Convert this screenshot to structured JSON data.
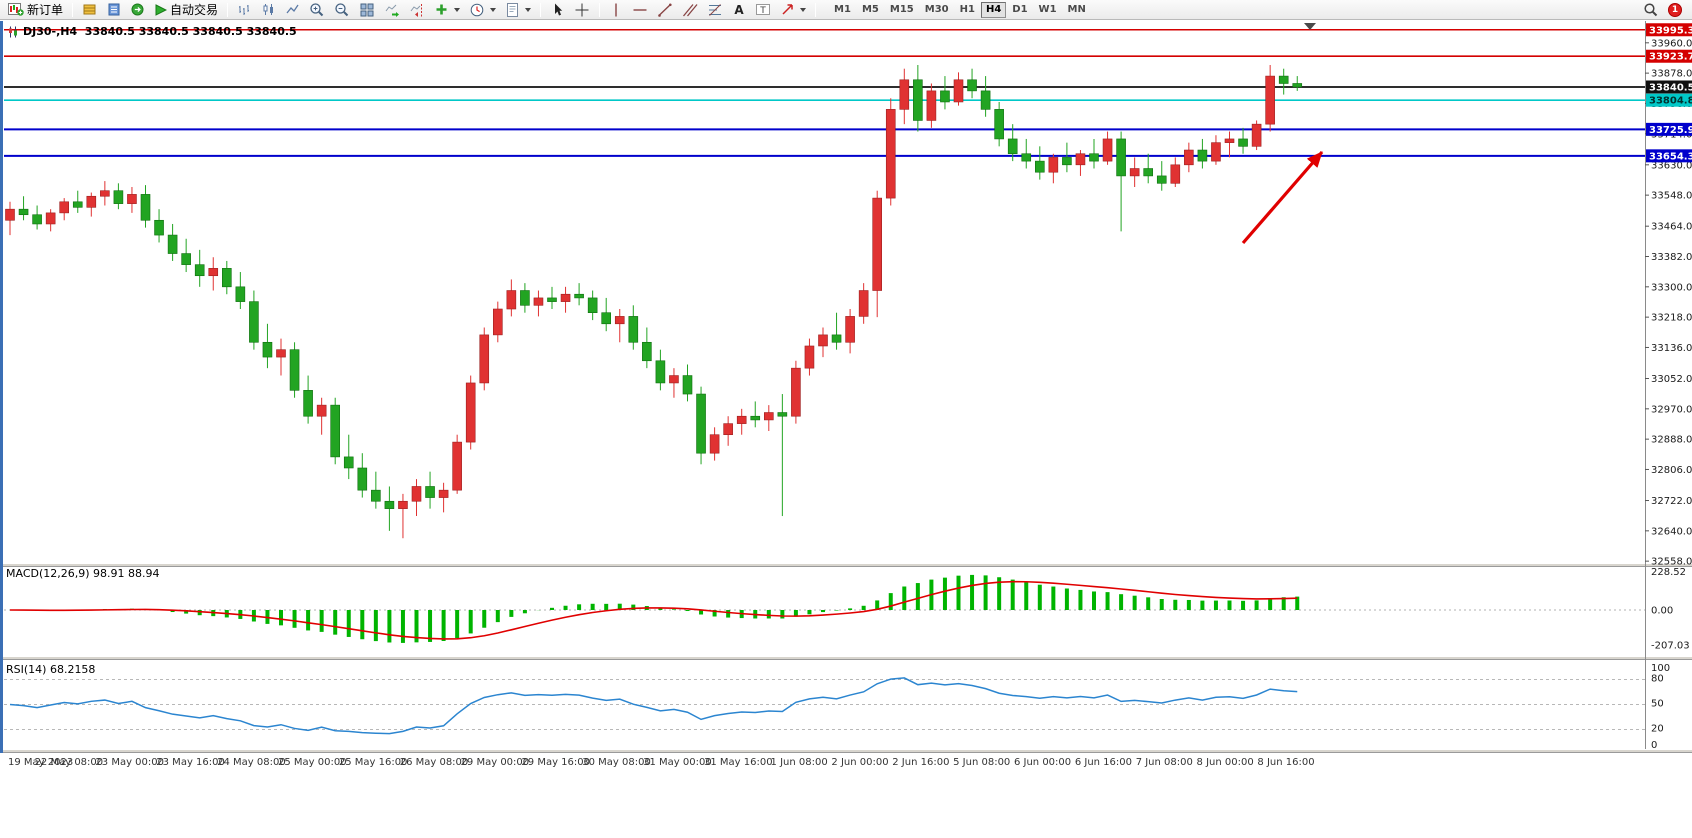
{
  "toolbar": {
    "new_order_label": "新订单",
    "autotrading_label": "自动交易",
    "timeframes": [
      "M1",
      "M5",
      "M15",
      "M30",
      "H1",
      "H4",
      "D1",
      "W1",
      "MN"
    ],
    "active_timeframe": "H4",
    "notification_badge": "1"
  },
  "chart_header": {
    "title": "DJ30-,H4  33840.5 33840.5 33840.5 33840.5"
  },
  "indicators": {
    "macd_label": "MACD(12,26,9) 98.91 88.94",
    "rsi_label": "RSI(14) 68.2158"
  },
  "chart_data": {
    "type": "candlestick",
    "symbol": "DJ30-",
    "timeframe": "H4",
    "current_price": 33840.5,
    "ylim": [
      32553,
      34019
    ],
    "y_ticks": [
      33960.0,
      33878.0,
      33796.0,
      33714.0,
      33630.0,
      33548.0,
      33464.0,
      33382.0,
      33300.0,
      33218.0,
      33136.0,
      33052.0,
      32970.0,
      32888.0,
      32806.0,
      32722.0,
      32640.0,
      32558.0
    ],
    "price_markers": [
      {
        "value": "33995.3",
        "price": 33995.3,
        "bg": "#d40000",
        "fg": "#ffffff",
        "line": "#d40000",
        "line_width": 1.6
      },
      {
        "value": "33923.7",
        "price": 33923.7,
        "bg": "#d40000",
        "fg": "#ffffff",
        "line": "#d40000",
        "line_width": 1.6
      },
      {
        "value": "33840.5",
        "price": 33840.5,
        "bg": "#101010",
        "fg": "#ffffff",
        "line": "#101010",
        "line_width": 1.8
      },
      {
        "value": "33804.8",
        "price": 33804.8,
        "bg": "#00c8c8",
        "fg": "#00312f",
        "line": "#00c8c8",
        "line_width": 1.6
      },
      {
        "value": "33725.9",
        "price": 33725.9,
        "bg": "#0000cc",
        "fg": "#ffffff",
        "line": "#0000cc",
        "line_width": 2
      },
      {
        "value": "33654.3",
        "price": 33654.3,
        "bg": "#0000cc",
        "fg": "#ffffff",
        "line": "#0000cc",
        "line_width": 2
      }
    ],
    "x_labels": [
      "19 May 2023",
      "22 May 08:00",
      "23 May 00:00",
      "23 May 16:00",
      "24 May 08:00",
      "25 May 00:00",
      "25 May 16:00",
      "26 May 08:00",
      "29 May 00:00",
      "29 May 16:00",
      "30 May 08:00",
      "31 May 00:00",
      "31 May 16:00",
      "1 Jun 08:00",
      "2 Jun 00:00",
      "2 Jun 16:00",
      "5 Jun 08:00",
      "6 Jun 00:00",
      "6 Jun 16:00",
      "7 Jun 08:00",
      "8 Jun 00:00",
      "8 Jun 16:00"
    ],
    "colors": {
      "up": "#e03232",
      "up_border": "#9c1f1f",
      "down": "#22a422",
      "down_border": "#0f6e0f"
    },
    "candles": [
      [
        33480,
        33530,
        33440,
        33510
      ],
      [
        33510,
        33545,
        33480,
        33495
      ],
      [
        33495,
        33520,
        33455,
        33470
      ],
      [
        33470,
        33510,
        33450,
        33500
      ],
      [
        33500,
        33540,
        33480,
        33530
      ],
      [
        33530,
        33560,
        33500,
        33515
      ],
      [
        33515,
        33555,
        33490,
        33545
      ],
      [
        33545,
        33586,
        33520,
        33560
      ],
      [
        33560,
        33580,
        33510,
        33525
      ],
      [
        33525,
        33570,
        33500,
        33550
      ],
      [
        33550,
        33575,
        33460,
        33480
      ],
      [
        33480,
        33510,
        33420,
        33440
      ],
      [
        33440,
        33470,
        33370,
        33390
      ],
      [
        33390,
        33430,
        33340,
        33360
      ],
      [
        33360,
        33400,
        33300,
        33330
      ],
      [
        33330,
        33380,
        33290,
        33350
      ],
      [
        33350,
        33370,
        33280,
        33300
      ],
      [
        33300,
        33340,
        33240,
        33260
      ],
      [
        33260,
        33290,
        33130,
        33150
      ],
      [
        33150,
        33200,
        33080,
        33110
      ],
      [
        33110,
        33160,
        33060,
        33130
      ],
      [
        33130,
        33150,
        33000,
        33020
      ],
      [
        33020,
        33060,
        32930,
        32950
      ],
      [
        32950,
        33000,
        32900,
        32980
      ],
      [
        32980,
        33000,
        32820,
        32840
      ],
      [
        32840,
        32900,
        32780,
        32810
      ],
      [
        32810,
        32850,
        32730,
        32750
      ],
      [
        32750,
        32800,
        32700,
        32720
      ],
      [
        32720,
        32760,
        32640,
        32700
      ],
      [
        32700,
        32740,
        32620,
        32720
      ],
      [
        32720,
        32780,
        32680,
        32760
      ],
      [
        32760,
        32800,
        32700,
        32730
      ],
      [
        32730,
        32770,
        32690,
        32750
      ],
      [
        32750,
        32900,
        32740,
        32880
      ],
      [
        32880,
        33060,
        32860,
        33040
      ],
      [
        33040,
        33190,
        33020,
        33170
      ],
      [
        33170,
        33260,
        33150,
        33240
      ],
      [
        33240,
        33320,
        33220,
        33290
      ],
      [
        33290,
        33310,
        33230,
        33250
      ],
      [
        33250,
        33290,
        33220,
        33270
      ],
      [
        33270,
        33300,
        33240,
        33260
      ],
      [
        33260,
        33300,
        33230,
        33280
      ],
      [
        33280,
        33310,
        33250,
        33270
      ],
      [
        33270,
        33290,
        33210,
        33230
      ],
      [
        33230,
        33270,
        33180,
        33200
      ],
      [
        33200,
        33240,
        33150,
        33220
      ],
      [
        33220,
        33250,
        33130,
        33150
      ],
      [
        33150,
        33190,
        33080,
        33100
      ],
      [
        33100,
        33130,
        33020,
        33040
      ],
      [
        33040,
        33080,
        33000,
        33060
      ],
      [
        33060,
        33090,
        32990,
        33010
      ],
      [
        33010,
        33030,
        32820,
        32850
      ],
      [
        32850,
        32920,
        32830,
        32900
      ],
      [
        32900,
        32950,
        32870,
        32930
      ],
      [
        32930,
        32970,
        32900,
        32950
      ],
      [
        32950,
        32990,
        32920,
        32940
      ],
      [
        32940,
        32980,
        32910,
        32960
      ],
      [
        32960,
        33010,
        32680,
        32950
      ],
      [
        32950,
        33100,
        32930,
        33080
      ],
      [
        33080,
        33160,
        33060,
        33140
      ],
      [
        33140,
        33190,
        33110,
        33170
      ],
      [
        33170,
        33230,
        33130,
        33150
      ],
      [
        33150,
        33240,
        33120,
        33220
      ],
      [
        33220,
        33310,
        33200,
        33290
      ],
      [
        33290,
        33560,
        33218,
        33540
      ],
      [
        33540,
        33810,
        33520,
        33780
      ],
      [
        33780,
        33890,
        33740,
        33860
      ],
      [
        33860,
        33900,
        33720,
        33750
      ],
      [
        33750,
        33850,
        33730,
        33830
      ],
      [
        33830,
        33870,
        33780,
        33800
      ],
      [
        33800,
        33880,
        33790,
        33860
      ],
      [
        33860,
        33890,
        33810,
        33830
      ],
      [
        33830,
        33870,
        33760,
        33780
      ],
      [
        33780,
        33800,
        33680,
        33700
      ],
      [
        33700,
        33740,
        33640,
        33660
      ],
      [
        33660,
        33700,
        33620,
        33640
      ],
      [
        33640,
        33680,
        33590,
        33610
      ],
      [
        33610,
        33660,
        33580,
        33650
      ],
      [
        33650,
        33690,
        33610,
        33630
      ],
      [
        33630,
        33670,
        33600,
        33660
      ],
      [
        33660,
        33700,
        33620,
        33640
      ],
      [
        33640,
        33720,
        33630,
        33700
      ],
      [
        33700,
        33720,
        33450,
        33600
      ],
      [
        33600,
        33650,
        33570,
        33620
      ],
      [
        33620,
        33660,
        33580,
        33600
      ],
      [
        33600,
        33640,
        33560,
        33580
      ],
      [
        33580,
        33650,
        33570,
        33630
      ],
      [
        33630,
        33690,
        33610,
        33670
      ],
      [
        33670,
        33700,
        33620,
        33640
      ],
      [
        33640,
        33710,
        33630,
        33690
      ],
      [
        33690,
        33720,
        33650,
        33700
      ],
      [
        33700,
        33730,
        33660,
        33680
      ],
      [
        33680,
        33750,
        33670,
        33740
      ],
      [
        33740,
        33900,
        33720,
        33870
      ],
      [
        33870,
        33890,
        33820,
        33850
      ],
      [
        33850,
        33870,
        33830,
        33840.5
      ]
    ],
    "macd": {
      "params": [
        12,
        26,
        9
      ],
      "value": 98.91,
      "signal_value": 88.94,
      "axis_labels": [
        "228.52",
        "0.00",
        "-207.03"
      ],
      "hist_color": "#00b400",
      "signal_color": "#e00000"
    },
    "rsi": {
      "period": 14,
      "value": 68.2158,
      "levels": [
        80,
        50,
        20
      ],
      "axis_labels": [
        "100",
        "80",
        "50",
        "20",
        "0"
      ],
      "color": "#2b85d0"
    },
    "arrow": {
      "from": [
        1243,
        243
      ],
      "to": [
        1322,
        152
      ],
      "color": "#e00000"
    }
  }
}
